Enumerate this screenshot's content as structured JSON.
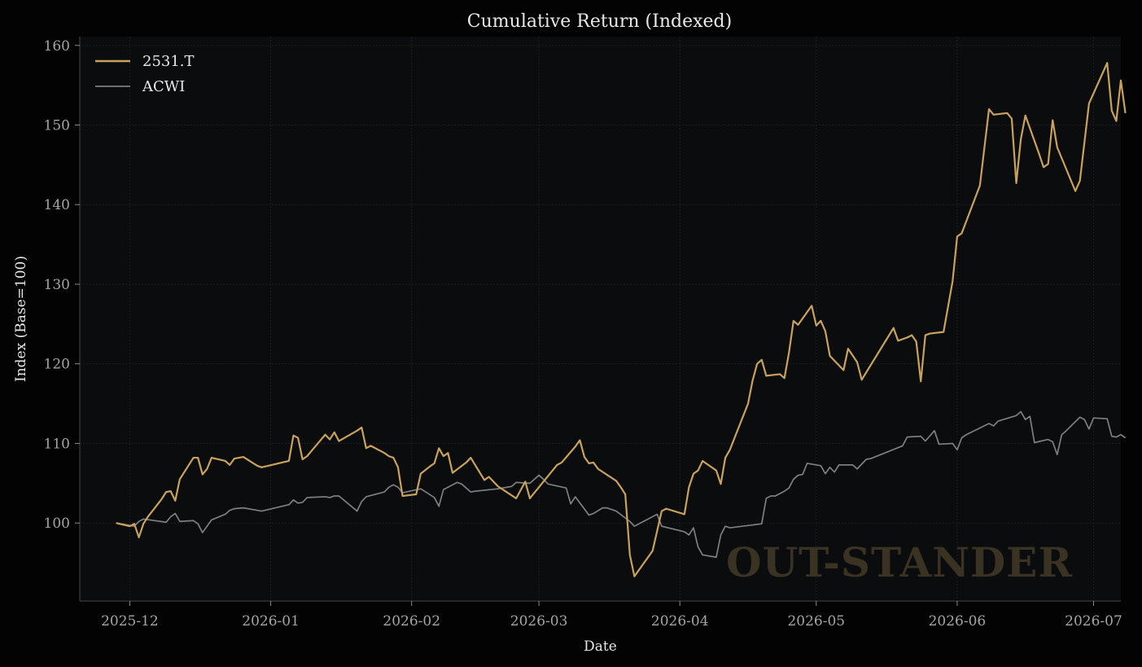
{
  "chart_data": {
    "type": "line",
    "title": "Cumulative Return (Indexed)",
    "xlabel": "Date",
    "ylabel": "Index (Base=100)",
    "watermark": "OUT-STANDER",
    "x_ticks": [
      "2025-12-01",
      "2026-01-01",
      "2026-02-01",
      "2026-03-01",
      "2026-04-01",
      "2026-05-01",
      "2026-06-01",
      "2026-07-01"
    ],
    "x_tick_labels": [
      "2025-12",
      "2026-01",
      "2026-02",
      "2026-03",
      "2026-04",
      "2026-05",
      "2026-06",
      "2026-07"
    ],
    "xlim": [
      "2025-11-20",
      "2026-07-07"
    ],
    "ylim": [
      90.2,
      161.1
    ],
    "y_ticks": [
      100,
      110,
      120,
      130,
      140,
      150,
      160
    ],
    "grid": true,
    "legend_position": "top-left",
    "colors": {
      "background": "#030303",
      "plot_background": "#0b0c0e",
      "axis": "#3a3a3a",
      "grid": "#1d1f22",
      "watermark": "#3a3222"
    },
    "series": [
      {
        "name": "2531.T",
        "color": "#c9a25c",
        "points": [
          [
            "2025-11-28",
            100.0
          ],
          [
            "2025-12-01",
            99.6
          ],
          [
            "2025-12-02",
            99.9
          ],
          [
            "2025-12-03",
            98.2
          ],
          [
            "2025-12-04",
            99.9
          ],
          [
            "2025-12-05",
            100.8
          ],
          [
            "2025-12-08",
            103.0
          ],
          [
            "2025-12-09",
            103.9
          ],
          [
            "2025-12-10",
            104.0
          ],
          [
            "2025-12-11",
            102.8
          ],
          [
            "2025-12-12",
            105.5
          ],
          [
            "2025-12-15",
            108.2
          ],
          [
            "2025-12-16",
            108.2
          ],
          [
            "2025-12-17",
            106.1
          ],
          [
            "2025-12-18",
            106.8
          ],
          [
            "2025-12-19",
            108.2
          ],
          [
            "2025-12-22",
            107.8
          ],
          [
            "2025-12-23",
            107.3
          ],
          [
            "2025-12-24",
            108.1
          ],
          [
            "2025-12-26",
            108.3
          ],
          [
            "2025-12-29",
            107.2
          ],
          [
            "2025-12-30",
            107.0
          ],
          [
            "2026-01-05",
            107.8
          ],
          [
            "2026-01-06",
            111.0
          ],
          [
            "2026-01-07",
            110.7
          ],
          [
            "2026-01-08",
            108.0
          ],
          [
            "2026-01-09",
            108.4
          ],
          [
            "2026-01-13",
            111.1
          ],
          [
            "2026-01-14",
            110.5
          ],
          [
            "2026-01-15",
            111.4
          ],
          [
            "2026-01-16",
            110.3
          ],
          [
            "2026-01-20",
            111.6
          ],
          [
            "2026-01-21",
            112.0
          ],
          [
            "2026-01-22",
            109.4
          ],
          [
            "2026-01-23",
            109.7
          ],
          [
            "2026-01-26",
            108.8
          ],
          [
            "2026-01-27",
            108.4
          ],
          [
            "2026-01-28",
            108.2
          ],
          [
            "2026-01-29",
            107.0
          ],
          [
            "2026-01-30",
            103.4
          ],
          [
            "2026-02-02",
            103.6
          ],
          [
            "2026-02-03",
            106.2
          ],
          [
            "2026-02-05",
            107.1
          ],
          [
            "2026-02-06",
            107.5
          ],
          [
            "2026-02-07",
            109.4
          ],
          [
            "2026-02-08",
            108.4
          ],
          [
            "2026-02-09",
            108.8
          ],
          [
            "2026-02-10",
            106.3
          ],
          [
            "2026-02-13",
            107.6
          ],
          [
            "2026-02-14",
            108.2
          ],
          [
            "2026-02-17",
            105.4
          ],
          [
            "2026-02-18",
            105.8
          ],
          [
            "2026-02-20",
            104.6
          ],
          [
            "2026-02-24",
            103.1
          ],
          [
            "2026-02-26",
            105.2
          ],
          [
            "2026-02-27",
            103.1
          ],
          [
            "2026-03-05",
            107.3
          ],
          [
            "2026-03-06",
            107.6
          ],
          [
            "2026-03-09",
            109.6
          ],
          [
            "2026-03-10",
            110.4
          ],
          [
            "2026-03-11",
            108.3
          ],
          [
            "2026-03-12",
            107.5
          ],
          [
            "2026-03-13",
            107.6
          ],
          [
            "2026-03-14",
            106.8
          ],
          [
            "2026-03-18",
            105.3
          ],
          [
            "2026-03-19",
            104.5
          ],
          [
            "2026-03-20",
            103.6
          ],
          [
            "2026-03-21",
            96.0
          ],
          [
            "2026-03-22",
            93.3
          ],
          [
            "2026-03-26",
            96.5
          ],
          [
            "2026-03-28",
            101.5
          ],
          [
            "2026-03-29",
            101.8
          ],
          [
            "2026-04-02",
            101.1
          ],
          [
            "2026-04-03",
            104.5
          ],
          [
            "2026-04-04",
            106.2
          ],
          [
            "2026-04-05",
            106.6
          ],
          [
            "2026-04-06",
            107.8
          ],
          [
            "2026-04-09",
            106.6
          ],
          [
            "2026-04-10",
            104.9
          ],
          [
            "2026-04-11",
            108.2
          ],
          [
            "2026-04-12",
            109.2
          ],
          [
            "2026-04-16",
            115.0
          ],
          [
            "2026-04-17",
            117.9
          ],
          [
            "2026-04-18",
            120.0
          ],
          [
            "2026-04-19",
            120.5
          ],
          [
            "2026-04-20",
            118.5
          ],
          [
            "2026-04-23",
            118.7
          ],
          [
            "2026-04-24",
            118.2
          ],
          [
            "2026-04-25",
            121.4
          ],
          [
            "2026-04-26",
            125.4
          ],
          [
            "2026-04-27",
            124.9
          ],
          [
            "2026-04-30",
            127.3
          ],
          [
            "2026-05-01",
            124.8
          ],
          [
            "2026-05-02",
            125.4
          ],
          [
            "2026-05-03",
            124.1
          ],
          [
            "2026-05-04",
            121.0
          ],
          [
            "2026-05-07",
            119.2
          ],
          [
            "2026-05-08",
            121.9
          ],
          [
            "2026-05-10",
            120.2
          ],
          [
            "2026-05-11",
            118.0
          ],
          [
            "2026-05-18",
            124.5
          ],
          [
            "2026-05-19",
            122.9
          ],
          [
            "2026-05-21",
            123.3
          ],
          [
            "2026-05-22",
            123.6
          ],
          [
            "2026-05-23",
            122.8
          ],
          [
            "2026-05-24",
            117.8
          ],
          [
            "2026-05-25",
            123.6
          ],
          [
            "2026-05-26",
            123.8
          ],
          [
            "2026-05-29",
            124.0
          ],
          [
            "2026-05-31",
            130.4
          ],
          [
            "2026-06-01",
            136.0
          ],
          [
            "2026-06-02",
            136.4
          ],
          [
            "2026-06-06",
            142.4
          ],
          [
            "2026-06-08",
            152.0
          ],
          [
            "2026-06-09",
            151.3
          ],
          [
            "2026-06-12",
            151.5
          ],
          [
            "2026-06-13",
            150.8
          ],
          [
            "2026-06-14",
            142.7
          ],
          [
            "2026-06-15",
            148.2
          ],
          [
            "2026-06-16",
            151.2
          ],
          [
            "2026-06-19",
            146.4
          ],
          [
            "2026-06-20",
            144.7
          ],
          [
            "2026-06-21",
            145.1
          ],
          [
            "2026-06-22",
            150.6
          ],
          [
            "2026-06-23",
            147.2
          ],
          [
            "2026-06-27",
            141.7
          ],
          [
            "2026-06-28",
            143.0
          ],
          [
            "2026-06-30",
            152.7
          ],
          [
            "2026-07-04",
            157.8
          ],
          [
            "2026-07-05",
            151.8
          ],
          [
            "2026-07-06",
            150.5
          ],
          [
            "2026-07-07",
            155.6
          ],
          [
            "2026-07-08",
            151.5
          ]
        ]
      },
      {
        "name": "ACWI",
        "color": "#7f7f7f",
        "points": [
          [
            "2025-11-28",
            100.0
          ],
          [
            "2025-12-02",
            99.6
          ],
          [
            "2025-12-03",
            100.2
          ],
          [
            "2025-12-04",
            100.5
          ],
          [
            "2025-12-09",
            100.1
          ],
          [
            "2025-12-10",
            100.8
          ],
          [
            "2025-12-11",
            101.2
          ],
          [
            "2025-12-12",
            100.2
          ],
          [
            "2025-12-15",
            100.3
          ],
          [
            "2025-12-16",
            99.9
          ],
          [
            "2025-12-17",
            98.8
          ],
          [
            "2025-12-19",
            100.4
          ],
          [
            "2025-12-22",
            101.1
          ],
          [
            "2025-12-23",
            101.6
          ],
          [
            "2025-12-24",
            101.8
          ],
          [
            "2025-12-26",
            101.9
          ],
          [
            "2025-12-30",
            101.5
          ],
          [
            "2026-01-05",
            102.3
          ],
          [
            "2026-01-06",
            102.9
          ],
          [
            "2026-01-07",
            102.5
          ],
          [
            "2026-01-08",
            102.6
          ],
          [
            "2026-01-09",
            103.2
          ],
          [
            "2026-01-13",
            103.3
          ],
          [
            "2026-01-14",
            103.2
          ],
          [
            "2026-01-15",
            103.4
          ],
          [
            "2026-01-16",
            103.4
          ],
          [
            "2026-01-20",
            101.5
          ],
          [
            "2026-01-21",
            102.7
          ],
          [
            "2026-01-22",
            103.3
          ],
          [
            "2026-01-26",
            103.9
          ],
          [
            "2026-01-27",
            104.5
          ],
          [
            "2026-01-28",
            104.8
          ],
          [
            "2026-01-29",
            104.5
          ],
          [
            "2026-01-30",
            103.8
          ],
          [
            "2026-02-03",
            104.3
          ],
          [
            "2026-02-06",
            103.2
          ],
          [
            "2026-02-07",
            102.1
          ],
          [
            "2026-02-08",
            104.2
          ],
          [
            "2026-02-11",
            105.1
          ],
          [
            "2026-02-12",
            104.9
          ],
          [
            "2026-02-14",
            103.9
          ],
          [
            "2026-02-15",
            104.0
          ],
          [
            "2026-02-20",
            104.3
          ],
          [
            "2026-02-23",
            104.6
          ],
          [
            "2026-02-24",
            105.1
          ],
          [
            "2026-02-27",
            105.0
          ],
          [
            "2026-03-01",
            106.0
          ],
          [
            "2026-03-02",
            105.5
          ],
          [
            "2026-03-03",
            104.9
          ],
          [
            "2026-03-07",
            104.4
          ],
          [
            "2026-03-08",
            102.4
          ],
          [
            "2026-03-09",
            103.3
          ],
          [
            "2026-03-12",
            101.0
          ],
          [
            "2026-03-13",
            101.2
          ],
          [
            "2026-03-15",
            101.9
          ],
          [
            "2026-03-16",
            101.9
          ],
          [
            "2026-03-18",
            101.5
          ],
          [
            "2026-03-21",
            100.2
          ],
          [
            "2026-03-22",
            99.6
          ],
          [
            "2026-03-27",
            101.1
          ],
          [
            "2026-03-28",
            99.6
          ],
          [
            "2026-04-02",
            98.9
          ],
          [
            "2026-04-03",
            98.5
          ],
          [
            "2026-04-04",
            99.4
          ],
          [
            "2026-04-05",
            97.0
          ],
          [
            "2026-04-06",
            96.0
          ],
          [
            "2026-04-09",
            95.7
          ],
          [
            "2026-04-10",
            98.5
          ],
          [
            "2026-04-11",
            99.6
          ],
          [
            "2026-04-12",
            99.4
          ],
          [
            "2026-04-19",
            99.9
          ],
          [
            "2026-04-20",
            103.1
          ],
          [
            "2026-04-21",
            103.4
          ],
          [
            "2026-04-22",
            103.4
          ],
          [
            "2026-04-24",
            104.0
          ],
          [
            "2026-04-25",
            104.4
          ],
          [
            "2026-04-26",
            105.5
          ],
          [
            "2026-04-27",
            106.0
          ],
          [
            "2026-04-28",
            106.1
          ],
          [
            "2026-04-29",
            107.5
          ],
          [
            "2026-05-02",
            107.2
          ],
          [
            "2026-05-03",
            106.2
          ],
          [
            "2026-05-04",
            107.0
          ],
          [
            "2026-05-05",
            106.4
          ],
          [
            "2026-05-06",
            107.3
          ],
          [
            "2026-05-09",
            107.3
          ],
          [
            "2026-05-10",
            106.8
          ],
          [
            "2026-05-12",
            108.0
          ],
          [
            "2026-05-13",
            108.1
          ],
          [
            "2026-05-20",
            109.7
          ],
          [
            "2026-05-21",
            110.8
          ],
          [
            "2026-05-24",
            110.9
          ],
          [
            "2026-05-25",
            110.3
          ],
          [
            "2026-05-27",
            111.6
          ],
          [
            "2026-05-28",
            109.9
          ],
          [
            "2026-05-31",
            110.0
          ],
          [
            "2026-06-01",
            109.2
          ],
          [
            "2026-06-02",
            110.7
          ],
          [
            "2026-06-03",
            111.1
          ],
          [
            "2026-06-08",
            112.5
          ],
          [
            "2026-06-09",
            112.2
          ],
          [
            "2026-06-10",
            112.8
          ],
          [
            "2026-06-14",
            113.5
          ],
          [
            "2026-06-15",
            114.0
          ],
          [
            "2026-06-16",
            113.0
          ],
          [
            "2026-06-17",
            113.4
          ],
          [
            "2026-06-18",
            110.1
          ],
          [
            "2026-06-21",
            110.5
          ],
          [
            "2026-06-22",
            110.2
          ],
          [
            "2026-06-23",
            108.6
          ],
          [
            "2026-06-24",
            111.1
          ],
          [
            "2026-06-25",
            111.6
          ],
          [
            "2026-06-28",
            113.3
          ],
          [
            "2026-06-29",
            113.0
          ],
          [
            "2026-06-30",
            111.8
          ],
          [
            "2026-07-01",
            113.2
          ],
          [
            "2026-07-04",
            113.1
          ],
          [
            "2026-07-05",
            110.9
          ],
          [
            "2026-07-06",
            110.8
          ],
          [
            "2026-07-07",
            111.1
          ],
          [
            "2026-07-08",
            110.7
          ]
        ]
      }
    ]
  }
}
